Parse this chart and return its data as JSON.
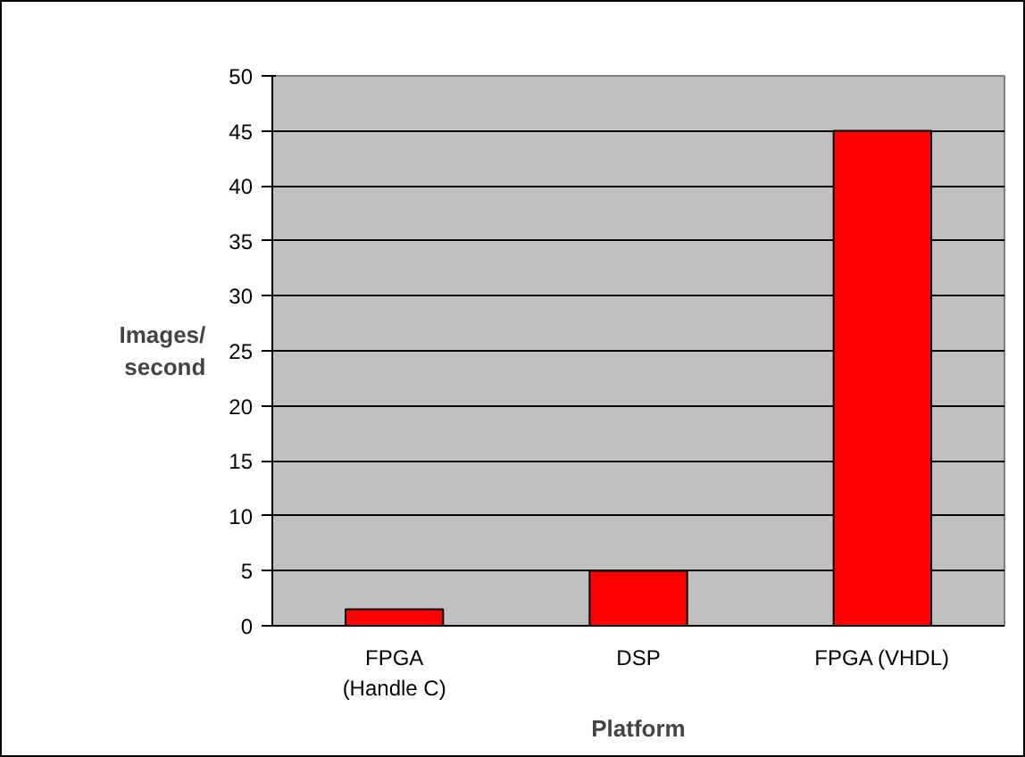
{
  "chart_data": {
    "type": "bar",
    "categories": [
      "FPGA\n(Handle C)",
      "DSP",
      "FPGA (VHDL)"
    ],
    "values": [
      1.5,
      5,
      45
    ],
    "color": "#ff0000",
    "xlabel": "Platform",
    "ylabel": "Images/\nsecond",
    "ylim": [
      0,
      50
    ],
    "yticks": [
      0,
      5,
      10,
      15,
      20,
      25,
      30,
      35,
      40,
      45,
      50
    ],
    "grid": "y"
  }
}
